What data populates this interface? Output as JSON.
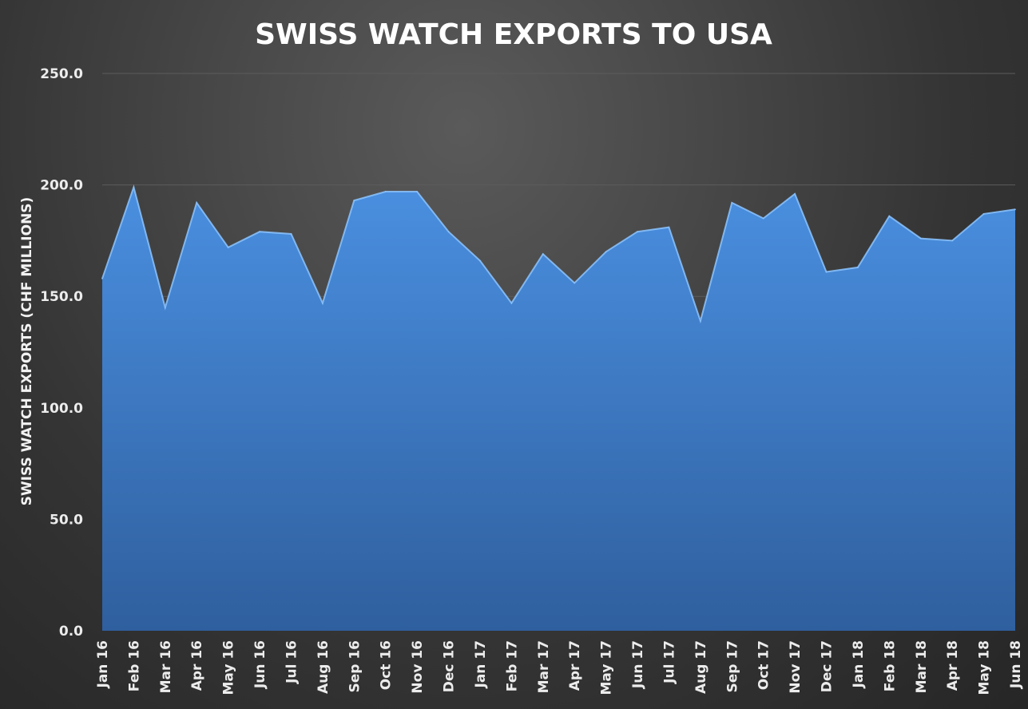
{
  "chart_data": {
    "type": "area",
    "title": "SWISS WATCH EXPORTS TO USA",
    "xlabel": "",
    "ylabel": "SWISS WATCH EXPORTS (CHF  MILLIONS)",
    "ylim": [
      0,
      250
    ],
    "yticks": [
      "0.0",
      "50.0",
      "100.0",
      "150.0",
      "200.0",
      "250.0"
    ],
    "grid": true,
    "legend": "none",
    "colors": {
      "area_top": "#4a8fe0",
      "area_bottom": "#2f5f9e",
      "edge_highlight": "#8cc4ff",
      "grid": "#5c5c5c",
      "text": "#ffffff"
    },
    "categories": [
      "Jan 16",
      "Feb 16",
      "Mar 16",
      "Apr 16",
      "May 16",
      "Jun 16",
      "Jul 16",
      "Aug 16",
      "Sep 16",
      "Oct 16",
      "Nov 16",
      "Dec 16",
      "Jan 17",
      "Feb 17",
      "Mar 17",
      "Apr 17",
      "May 17",
      "Jun 17",
      "Jul 17",
      "Aug 17",
      "Sep 17",
      "Oct 17",
      "Nov 17",
      "Dec 17",
      "Jan 18",
      "Feb 18",
      "Mar 18",
      "Apr 18",
      "May 18",
      "Jun 18"
    ],
    "series": [
      {
        "values": [
          158.0,
          199.0,
          145.0,
          192.0,
          172.0,
          179.0,
          178.0,
          147.0,
          193.0,
          197.0,
          197.0,
          179.0,
          166.0,
          147.0,
          169.0,
          156.0,
          170.0,
          179.0,
          181.0,
          139.0,
          192.0,
          185.0,
          196.0,
          161.0,
          163.0,
          186.0,
          176.0,
          175.0,
          187.0,
          189.0
        ]
      }
    ]
  }
}
